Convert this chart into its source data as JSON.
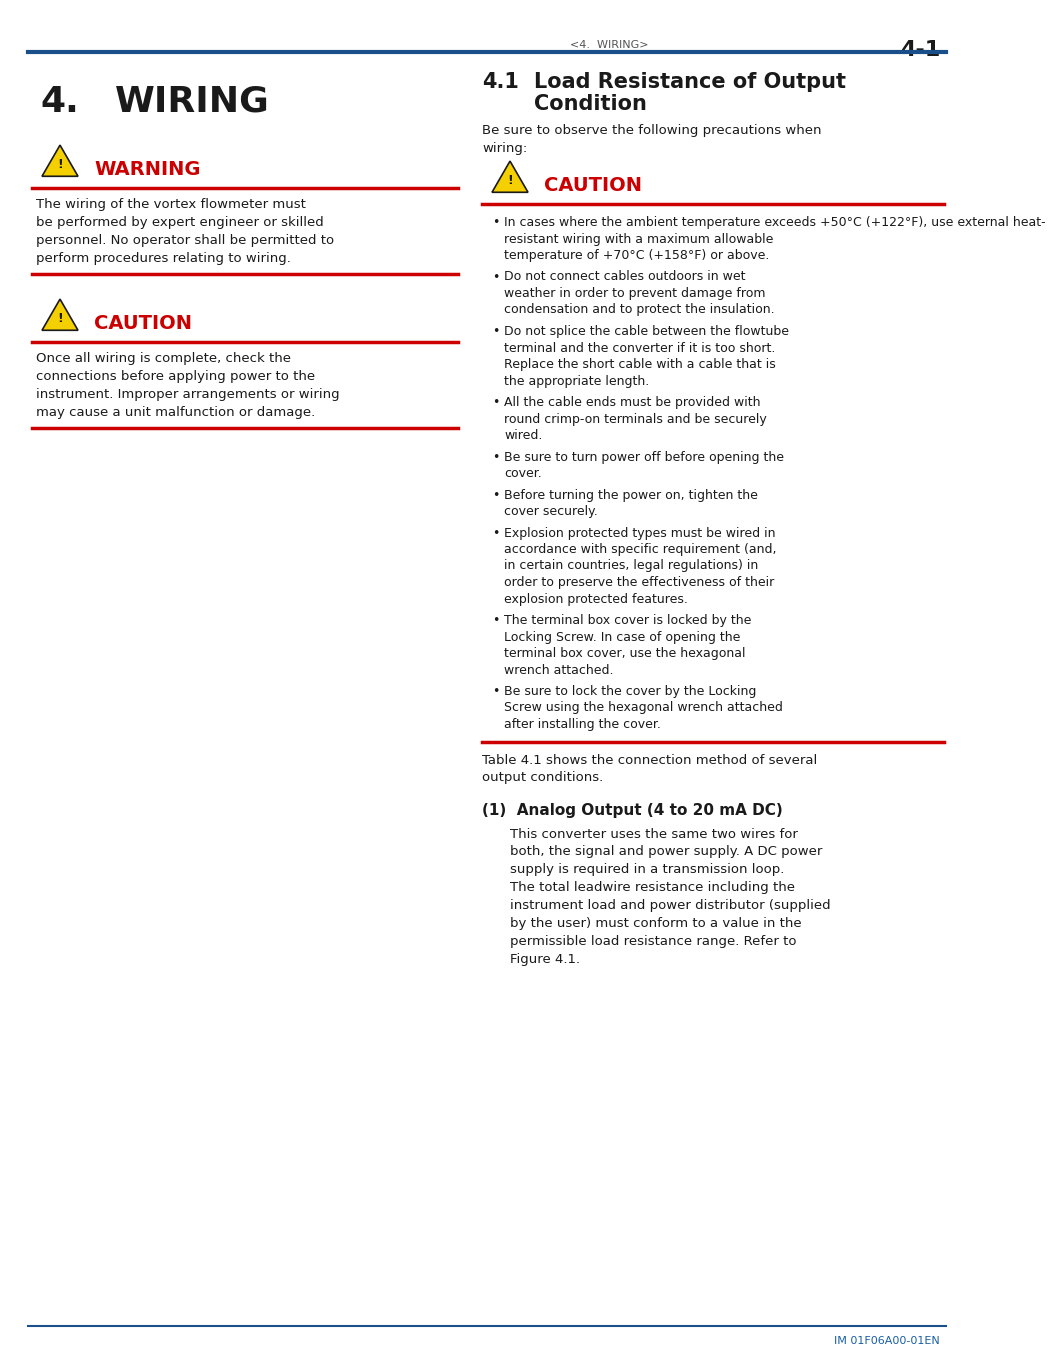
{
  "page_header_text": "<4.  WIRING>",
  "page_number": "4-1",
  "header_line_color": "#1a4f8a",
  "chapter_number": "4.",
  "chapter_title": "WIRING",
  "red_color": "#cc0000",
  "warning_color": "#cc0000",
  "caution_color": "#cc0000",
  "triangle_fill": "#f5d000",
  "triangle_edge": "#1a1a1a",
  "left_warning_title": "WARNING",
  "left_warning_text": [
    "The wiring of the vortex flowmeter must",
    "be performed by expert engineer or skilled",
    "personnel. No operator shall be permitted to",
    "perform procedures relating to wiring."
  ],
  "left_caution_title": "CAUTION",
  "left_caution_text": [
    "Once all wiring is complete, check the",
    "connections before applying power to the",
    "instrument. Improper arrangements or wiring",
    "may cause a unit malfunction or damage."
  ],
  "right_section_num": "4.1",
  "right_section_title_line1": "Load Resistance of Output",
  "right_section_title_line2": "Condition",
  "right_intro": [
    "Be sure to observe the following precautions when",
    "wiring:"
  ],
  "right_caution_title": "CAUTION",
  "right_caution_bullets": [
    [
      "In cases where the ambient temperature exceeds +50°C (+122°F), use external heat-",
      "resistant wiring with a maximum allowable",
      "temperature of +70°C (+158°F) or above."
    ],
    [
      "Do not connect cables outdoors in wet",
      "weather in order to prevent damage from",
      "condensation and to protect the insulation."
    ],
    [
      "Do not splice the cable between the flowtube",
      "terminal and the converter if it is too short.",
      "Replace the short cable with a cable that is",
      "the appropriate length."
    ],
    [
      "All the cable ends must be provided with",
      "round crimp-on terminals and be securely",
      "wired."
    ],
    [
      "Be sure to turn power off before opening the",
      "cover."
    ],
    [
      "Before turning the power on, tighten the",
      "cover securely."
    ],
    [
      "Explosion protected types must be wired in",
      "accordance with specific requirement (and,",
      "in certain countries, legal regulations) in",
      "order to preserve the effectiveness of their",
      "explosion protected features."
    ],
    [
      "The terminal box cover is locked by the",
      "Locking Screw. In case of opening the",
      "terminal box cover, use the hexagonal",
      "wrench attached."
    ],
    [
      "Be sure to lock the cover by the Locking",
      "Screw using the hexagonal wrench attached",
      "after installing the cover."
    ]
  ],
  "right_table_text": [
    "Table 4.1 shows the connection method of several",
    "output conditions."
  ],
  "right_analog_title": "(1)  Analog Output (4 to 20 mA DC)",
  "right_analog_text": [
    "This converter uses the same two wires for",
    "both, the signal and power supply. A DC power",
    "supply is required in a transmission loop.",
    "The total leadwire resistance including the",
    "instrument load and power distributor (supplied",
    "by the user) must conform to a value in the",
    "permissible load resistance range. Refer to",
    "Figure 4.1."
  ],
  "footer_text": "IM 01F06A00-01EN",
  "footer_color": "#1a5fa8",
  "bg_color": "#ffffff",
  "text_color": "#1a1a1a"
}
